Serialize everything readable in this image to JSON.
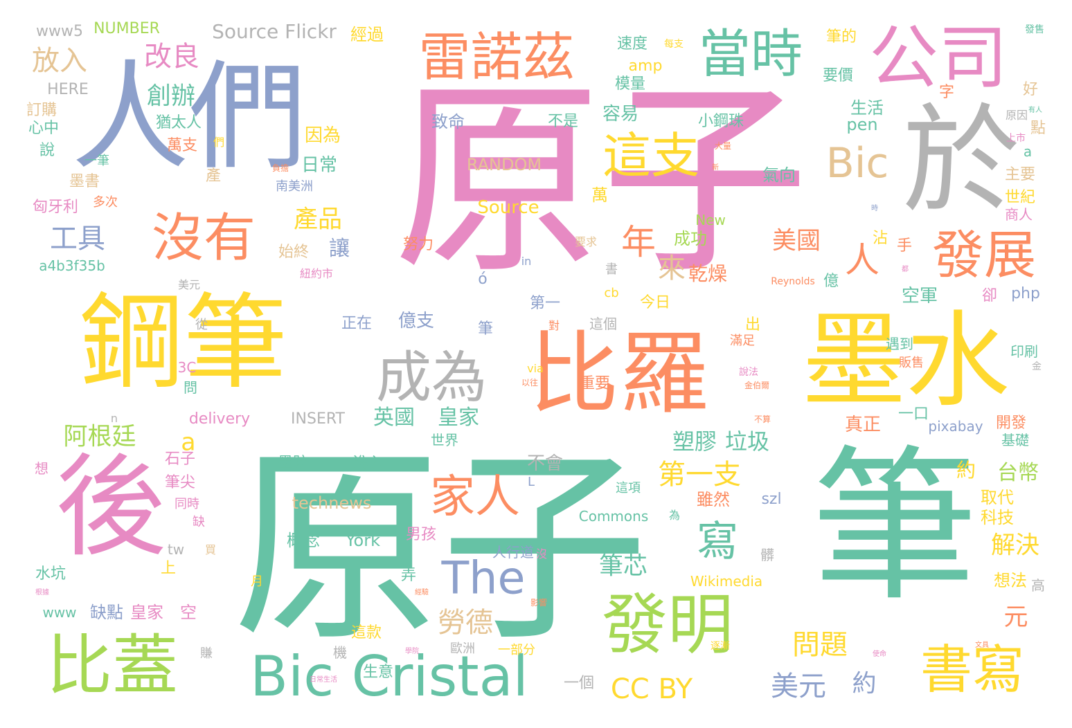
{
  "palette": {
    "pink": "#e78ac3",
    "teal": "#66c2a5",
    "green": "#a6d854",
    "yellow": "#ffd92f",
    "orange": "#fc8d62",
    "blue": "#8da0cb",
    "gray": "#b3b3b3",
    "tan": "#e5c494"
  },
  "words": [
    {
      "id": "w1",
      "text": "原子",
      "color": "pink"
    },
    {
      "id": "w2",
      "text": "原子",
      "color": "teal"
    },
    {
      "id": "w3",
      "text": "筆",
      "color": "teal"
    },
    {
      "id": "w4",
      "text": "鋼筆",
      "color": "yellow"
    },
    {
      "id": "w5",
      "text": "人們",
      "color": "blue"
    },
    {
      "id": "w6",
      "text": "於",
      "color": "gray"
    },
    {
      "id": "w7",
      "text": "墨水",
      "color": "yellow"
    },
    {
      "id": "w8",
      "text": "比羅",
      "color": "orange"
    },
    {
      "id": "w9",
      "text": "後",
      "color": "pink"
    },
    {
      "id": "w10",
      "text": "公司",
      "color": "pink"
    },
    {
      "id": "w11",
      "text": "雷諾茲",
      "color": "orange"
    },
    {
      "id": "w12",
      "text": "當時",
      "color": "teal"
    },
    {
      "id": "w13",
      "text": "發明",
      "color": "green"
    },
    {
      "id": "w14",
      "text": "比蓋",
      "color": "green"
    },
    {
      "id": "w15",
      "text": "Bic Cristal",
      "color": "teal"
    },
    {
      "id": "w16",
      "text": "成為",
      "color": "gray"
    },
    {
      "id": "w17",
      "text": "沒有",
      "color": "orange"
    },
    {
      "id": "w18",
      "text": "書寫",
      "color": "yellow"
    },
    {
      "id": "w19",
      "text": "發展",
      "color": "orange"
    },
    {
      "id": "w20",
      "text": "這支",
      "color": "yellow"
    },
    {
      "id": "w21",
      "text": "Bic",
      "color": "tan"
    },
    {
      "id": "w22",
      "text": "The",
      "color": "blue"
    },
    {
      "id": "w23",
      "text": "家人",
      "color": "orange"
    },
    {
      "id": "w24",
      "text": "寫",
      "color": "teal"
    },
    {
      "id": "w25",
      "text": "人",
      "color": "orange"
    },
    {
      "id": "w26",
      "text": "年",
      "color": "orange"
    },
    {
      "id": "w27",
      "text": "改良",
      "color": "pink"
    },
    {
      "id": "w28",
      "text": "創辦",
      "color": "teal"
    },
    {
      "id": "w29",
      "text": "放入",
      "color": "tan"
    },
    {
      "id": "w30",
      "text": "工具",
      "color": "blue"
    },
    {
      "id": "w31",
      "text": "產品",
      "color": "yellow"
    },
    {
      "id": "w32",
      "text": "美國",
      "color": "orange"
    },
    {
      "id": "w33",
      "text": "第一支",
      "color": "yellow"
    },
    {
      "id": "w34",
      "text": "勞德",
      "color": "tan"
    },
    {
      "id": "w35",
      "text": "筆芯",
      "color": "teal"
    },
    {
      "id": "w36",
      "text": "美元",
      "color": "blue"
    },
    {
      "id": "w37",
      "text": "問題",
      "color": "yellow"
    },
    {
      "id": "w38",
      "text": "CC BY",
      "color": "yellow"
    },
    {
      "id": "w39",
      "text": "阿根廷",
      "color": "green"
    },
    {
      "id": "w40",
      "text": "英國",
      "color": "teal"
    },
    {
      "id": "w41",
      "text": "皇家",
      "color": "teal"
    },
    {
      "id": "w42",
      "text": "塑膠",
      "color": "teal"
    },
    {
      "id": "w43",
      "text": "垃圾",
      "color": "teal"
    },
    {
      "id": "w44",
      "text": "解決",
      "color": "yellow"
    },
    {
      "id": "w45",
      "text": "來",
      "color": "tan"
    },
    {
      "id": "w46",
      "text": "乾燥",
      "color": "orange"
    },
    {
      "id": "w47",
      "text": "讓",
      "color": "blue"
    },
    {
      "id": "w48",
      "text": "日常",
      "color": "teal"
    },
    {
      "id": "w49",
      "text": "a",
      "color": "yellow"
    },
    {
      "id": "w50",
      "text": "約",
      "color": "blue"
    },
    {
      "id": "w51",
      "text": "元",
      "color": "orange"
    },
    {
      "id": "w52",
      "text": "約",
      "color": "yellow"
    },
    {
      "id": "w53",
      "text": "台幣",
      "color": "green"
    },
    {
      "id": "w54",
      "text": "億",
      "color": "teal"
    },
    {
      "id": "w55",
      "text": "Source Flickr",
      "color": "gray"
    },
    {
      "id": "w56",
      "text": "www5",
      "color": "gray"
    },
    {
      "id": "w57",
      "text": "NUMBER",
      "color": "green"
    },
    {
      "id": "w58",
      "text": "經過",
      "color": "yellow"
    },
    {
      "id": "w59",
      "text": "速度",
      "color": "teal"
    },
    {
      "id": "w60",
      "text": "每支",
      "color": "yellow"
    },
    {
      "id": "w61",
      "text": "筆的",
      "color": "yellow"
    },
    {
      "id": "w62",
      "text": "發售",
      "color": "teal"
    },
    {
      "id": "w63",
      "text": "HERE",
      "color": "gray"
    },
    {
      "id": "w64",
      "text": "訂購",
      "color": "tan"
    },
    {
      "id": "w65",
      "text": "心中",
      "color": "teal"
    },
    {
      "id": "w66",
      "text": "說",
      "color": "teal"
    },
    {
      "id": "w67",
      "text": "猶太人",
      "color": "teal"
    },
    {
      "id": "w68",
      "text": "萬支",
      "color": "orange"
    },
    {
      "id": "w69",
      "text": "們",
      "color": "yellow"
    },
    {
      "id": "w70",
      "text": "amp",
      "color": "yellow"
    },
    {
      "id": "w71",
      "text": "模量",
      "color": "teal"
    },
    {
      "id": "w72",
      "text": "要價",
      "color": "teal"
    },
    {
      "id": "w73",
      "text": "好",
      "color": "tan"
    },
    {
      "id": "w74",
      "text": "字",
      "color": "orange"
    },
    {
      "id": "w75",
      "text": "容易",
      "color": "teal"
    },
    {
      "id": "w76",
      "text": "生活",
      "color": "teal"
    },
    {
      "id": "w77",
      "text": "pen",
      "color": "teal"
    },
    {
      "id": "w78",
      "text": "原因",
      "color": "gray"
    },
    {
      "id": "w79",
      "text": "有人",
      "color": "teal"
    },
    {
      "id": "w80",
      "text": "點",
      "color": "tan"
    },
    {
      "id": "w81",
      "text": "致命",
      "color": "blue"
    },
    {
      "id": "w82",
      "text": "不是",
      "color": "teal"
    },
    {
      "id": "w83",
      "text": "小鋼珠",
      "color": "teal"
    },
    {
      "id": "w84",
      "text": "因為",
      "color": "yellow"
    },
    {
      "id": "w85",
      "text": "上市",
      "color": "pink"
    },
    {
      "id": "w86",
      "text": "a",
      "color": "teal"
    },
    {
      "id": "w87",
      "text": "大量",
      "color": "orange"
    },
    {
      "id": "w88",
      "text": "主要",
      "color": "tan"
    },
    {
      "id": "w89",
      "text": "一筆",
      "color": "teal"
    },
    {
      "id": "w90",
      "text": "墨書",
      "color": "tan"
    },
    {
      "id": "w91",
      "text": "產",
      "color": "tan"
    },
    {
      "id": "w92",
      "text": "負擔",
      "color": "orange"
    },
    {
      "id": "w93",
      "text": "南美洲",
      "color": "blue"
    },
    {
      "id": "w94",
      "text": "新",
      "color": "orange"
    },
    {
      "id": "w95",
      "text": "氣向",
      "color": "teal"
    },
    {
      "id": "w96",
      "text": "世紀",
      "color": "yellow"
    },
    {
      "id": "w97",
      "text": "商人",
      "color": "pink"
    },
    {
      "id": "w98",
      "text": "匈牙利",
      "color": "pink"
    },
    {
      "id": "w99",
      "text": "多次",
      "color": "orange"
    },
    {
      "id": "w100",
      "text": "萬",
      "color": "yellow"
    },
    {
      "id": "w101",
      "text": "New",
      "color": "green"
    },
    {
      "id": "w102",
      "text": "沾",
      "color": "yellow"
    },
    {
      "id": "w103",
      "text": "手",
      "color": "orange"
    },
    {
      "id": "w104",
      "text": "始終",
      "color": "tan"
    },
    {
      "id": "w105",
      "text": "努力",
      "color": "orange"
    },
    {
      "id": "w106",
      "text": "要求",
      "color": "tan"
    },
    {
      "id": "w107",
      "text": "成功",
      "color": "green"
    },
    {
      "id": "w108",
      "text": "a4b3f35b",
      "color": "teal"
    },
    {
      "id": "w109",
      "text": "紐約市",
      "color": "pink"
    },
    {
      "id": "w110",
      "text": "in",
      "color": "blue"
    },
    {
      "id": "w111",
      "text": "書",
      "color": "gray"
    },
    {
      "id": "w112",
      "text": "Reynolds",
      "color": "orange"
    },
    {
      "id": "w113",
      "text": "都",
      "color": "pink"
    },
    {
      "id": "w114",
      "text": "美元",
      "color": "gray"
    },
    {
      "id": "w115",
      "text": "ó",
      "color": "blue"
    },
    {
      "id": "w116",
      "text": "cb",
      "color": "yellow"
    },
    {
      "id": "w117",
      "text": "空軍",
      "color": "teal"
    },
    {
      "id": "w118",
      "text": "卻",
      "color": "pink"
    },
    {
      "id": "w119",
      "text": "php",
      "color": "blue"
    },
    {
      "id": "w120",
      "text": "第一",
      "color": "blue"
    },
    {
      "id": "w121",
      "text": "今日",
      "color": "yellow"
    },
    {
      "id": "w122",
      "text": "億支",
      "color": "blue"
    },
    {
      "id": "w123",
      "text": "從",
      "color": "gray"
    },
    {
      "id": "w124",
      "text": "正在",
      "color": "blue"
    },
    {
      "id": "w125",
      "text": "筆",
      "color": "blue"
    },
    {
      "id": "w126",
      "text": "對",
      "color": "orange"
    },
    {
      "id": "w127",
      "text": "這個",
      "color": "gray"
    },
    {
      "id": "w128",
      "text": "出",
      "color": "yellow"
    },
    {
      "id": "w129",
      "text": "滿足",
      "color": "orange"
    },
    {
      "id": "w130",
      "text": "遇到",
      "color": "teal"
    },
    {
      "id": "w131",
      "text": "販售",
      "color": "orange"
    },
    {
      "id": "w132",
      "text": "印刷",
      "color": "teal"
    },
    {
      "id": "w133",
      "text": "3C",
      "color": "pink"
    },
    {
      "id": "w134",
      "text": "問",
      "color": "teal"
    },
    {
      "id": "w135",
      "text": "via",
      "color": "yellow"
    },
    {
      "id": "w136",
      "text": "以往",
      "color": "orange"
    },
    {
      "id": "w137",
      "text": "重要",
      "color": "orange"
    },
    {
      "id": "w138",
      "text": "說法",
      "color": "pink"
    },
    {
      "id": "w139",
      "text": "金伯爾",
      "color": "orange"
    },
    {
      "id": "w140",
      "text": "n",
      "color": "gray"
    },
    {
      "id": "w141",
      "text": "delivery",
      "color": "pink"
    },
    {
      "id": "w142",
      "text": "INSERT",
      "color": "gray"
    },
    {
      "id": "w143",
      "text": "世界",
      "color": "teal"
    },
    {
      "id": "w144",
      "text": "一口",
      "color": "teal"
    },
    {
      "id": "w145",
      "text": "不算",
      "color": "orange"
    },
    {
      "id": "w146",
      "text": "真正",
      "color": "orange"
    },
    {
      "id": "w147",
      "text": "開發",
      "color": "orange"
    },
    {
      "id": "w148",
      "text": "pixabay",
      "color": "blue"
    },
    {
      "id": "w149",
      "text": "基礎",
      "color": "teal"
    },
    {
      "id": "w150",
      "text": "想",
      "color": "pink"
    },
    {
      "id": "w151",
      "text": "石子",
      "color": "pink"
    },
    {
      "id": "w152",
      "text": "筆尖",
      "color": "pink"
    },
    {
      "id": "w153",
      "text": "同時",
      "color": "pink"
    },
    {
      "id": "w154",
      "text": "缺",
      "color": "pink"
    },
    {
      "id": "w155",
      "text": "墨跡",
      "color": "teal"
    },
    {
      "id": "w156",
      "text": "進入",
      "color": "teal"
    },
    {
      "id": "w157",
      "text": "不會",
      "color": "gray"
    },
    {
      "id": "w158",
      "text": "L",
      "color": "blue"
    },
    {
      "id": "w159",
      "text": "technews",
      "color": "tan"
    },
    {
      "id": "w160",
      "text": "這項",
      "color": "teal"
    },
    {
      "id": "w161",
      "text": "雖然",
      "color": "orange"
    },
    {
      "id": "w162",
      "text": "szl",
      "color": "blue"
    },
    {
      "id": "w163",
      "text": "取代",
      "color": "yellow"
    },
    {
      "id": "w164",
      "text": "科技",
      "color": "yellow"
    },
    {
      "id": "w165",
      "text": "Commons",
      "color": "teal"
    },
    {
      "id": "w166",
      "text": "為",
      "color": "teal"
    },
    {
      "id": "w167",
      "text": "概念",
      "color": "teal"
    },
    {
      "id": "w168",
      "text": "York",
      "color": "teal"
    },
    {
      "id": "w169",
      "text": "男孩",
      "color": "pink"
    },
    {
      "id": "w170",
      "text": "水坑",
      "color": "teal"
    },
    {
      "id": "w171",
      "text": "tw",
      "color": "gray"
    },
    {
      "id": "w172",
      "text": "上",
      "color": "yellow"
    },
    {
      "id": "w173",
      "text": "買",
      "color": "tan"
    },
    {
      "id": "w174",
      "text": "人行道",
      "color": "blue"
    },
    {
      "id": "w175",
      "text": "沒",
      "color": "pink"
    },
    {
      "id": "w176",
      "text": "髒",
      "color": "gray"
    },
    {
      "id": "w177",
      "text": "想法",
      "color": "yellow"
    },
    {
      "id": "w178",
      "text": "高",
      "color": "gray"
    },
    {
      "id": "w179",
      "text": "Wikimedia",
      "color": "yellow"
    },
    {
      "id": "w180",
      "text": "月",
      "color": "yellow"
    },
    {
      "id": "w181",
      "text": "弄",
      "color": "teal"
    },
    {
      "id": "w182",
      "text": "經驗",
      "color": "orange"
    },
    {
      "id": "w183",
      "text": "影響",
      "color": "orange"
    },
    {
      "id": "w184",
      "text": "根據",
      "color": "pink"
    },
    {
      "id": "w185",
      "text": "www",
      "color": "teal"
    },
    {
      "id": "w186",
      "text": "缺點",
      "color": "blue"
    },
    {
      "id": "w187",
      "text": "皇家",
      "color": "pink"
    },
    {
      "id": "w188",
      "text": "空",
      "color": "pink"
    },
    {
      "id": "w189",
      "text": "這款",
      "color": "yellow"
    },
    {
      "id": "w190",
      "text": "逐漸",
      "color": "yellow"
    },
    {
      "id": "w191",
      "text": "文具",
      "color": "orange"
    },
    {
      "id": "w192",
      "text": "機",
      "color": "gray"
    },
    {
      "id": "w193",
      "text": "賺",
      "color": "gray"
    },
    {
      "id": "w194",
      "text": "歐洲",
      "color": "gray"
    },
    {
      "id": "w195",
      "text": "一部分",
      "color": "yellow"
    },
    {
      "id": "w196",
      "text": "使命",
      "color": "pink"
    },
    {
      "id": "w197",
      "text": "學院",
      "color": "pink"
    },
    {
      "id": "w198",
      "text": "生意",
      "color": "teal"
    },
    {
      "id": "w199",
      "text": "日常生活",
      "color": "pink"
    },
    {
      "id": "w200",
      "text": "一個",
      "color": "gray"
    },
    {
      "id": "w201",
      "text": "金",
      "color": "gray"
    },
    {
      "id": "w202",
      "text": "時",
      "color": "blue"
    },
    {
      "id": "w203",
      "text": "RANDOM",
      "color": "tan"
    },
    {
      "id": "w204",
      "text": "Source",
      "color": "yellow"
    }
  ]
}
